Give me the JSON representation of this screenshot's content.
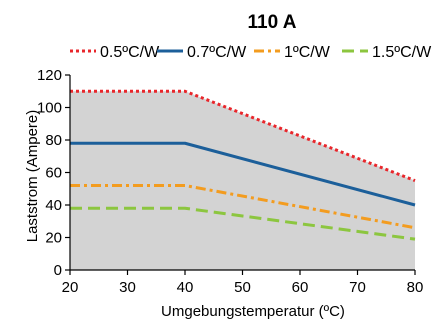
{
  "chart_data": {
    "type": "line",
    "title": "110 A",
    "xlabel": "Umgebungstemperatur (ºC)",
    "ylabel": "Laststrom (Ampere)",
    "xlim": [
      20,
      80
    ],
    "ylim": [
      0,
      120
    ],
    "xticks": [
      20,
      30,
      40,
      50,
      60,
      70,
      80
    ],
    "yticks": [
      0,
      20,
      40,
      60,
      80,
      100,
      120
    ],
    "legend_position": "top",
    "grid": false,
    "area_fill_color": "#d3d3d3",
    "series": [
      {
        "name": "0.5ºC/W",
        "color": "#e8262b",
        "dash": "dotted",
        "x": [
          20,
          40,
          80
        ],
        "y": [
          110,
          110,
          55
        ]
      },
      {
        "name": "0.7ºC/W",
        "color": "#1c5f9a",
        "dash": "solid",
        "x": [
          20,
          40,
          80
        ],
        "y": [
          78,
          78,
          40
        ]
      },
      {
        "name": "1ºC/W",
        "color": "#f39c1f",
        "dash": "dashdot",
        "x": [
          20,
          40,
          80
        ],
        "y": [
          52,
          52,
          26
        ]
      },
      {
        "name": "1.5ºC/W",
        "color": "#8cc63f",
        "dash": "dashed",
        "x": [
          20,
          40,
          80
        ],
        "y": [
          38,
          38,
          19
        ]
      }
    ]
  }
}
